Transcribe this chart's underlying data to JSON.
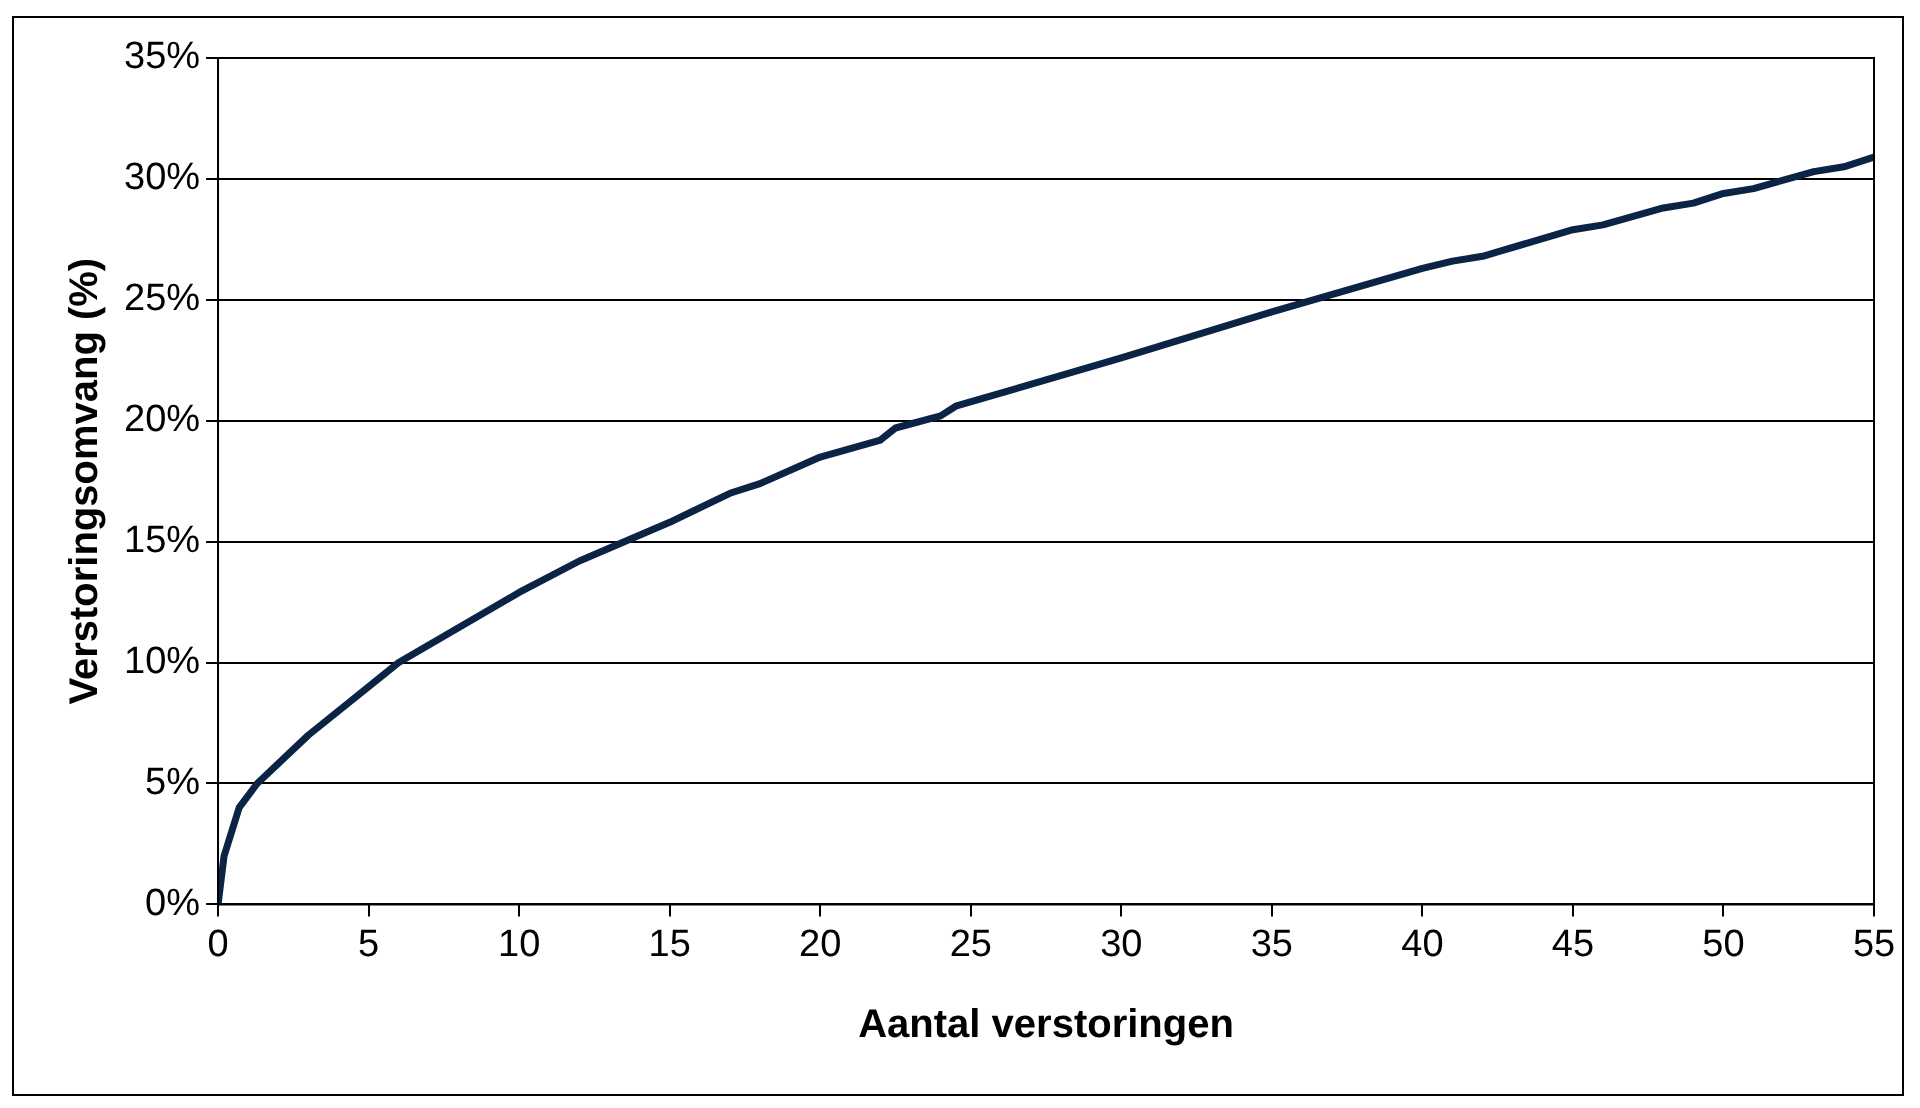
{
  "chart_data": {
    "type": "line",
    "xlabel": "Aantal verstoringen",
    "ylabel": "Verstoringsomvang (%)",
    "x": [
      0,
      0.2,
      0.7,
      1.3,
      3,
      6,
      10,
      12,
      15,
      17,
      18,
      20,
      22,
      22.5,
      24,
      24.5,
      30,
      35,
      40,
      41,
      42,
      45,
      46,
      48,
      49,
      50,
      51,
      53,
      54,
      55
    ],
    "series": [
      {
        "color": "#0b2344",
        "values": [
          0,
          2,
          4,
          5,
          7,
          10,
          12.9,
          14.2,
          15.8,
          17,
          17.4,
          18.5,
          19.2,
          19.7,
          20.2,
          20.6,
          22.6,
          24.5,
          26.3,
          26.6,
          26.8,
          27.9,
          28.1,
          28.8,
          29,
          29.4,
          29.6,
          30.3,
          30.5,
          30.9
        ]
      }
    ],
    "xlim": [
      0,
      55
    ],
    "xticks": [
      0,
      5,
      10,
      15,
      20,
      25,
      30,
      35,
      40,
      45,
      50,
      55
    ],
    "ylim": [
      0,
      35
    ],
    "yticks": [
      {
        "value": 0,
        "label": "0%"
      },
      {
        "value": 5,
        "label": "5%"
      },
      {
        "value": 10,
        "label": "10%"
      },
      {
        "value": 15,
        "label": "15%"
      },
      {
        "value": 20,
        "label": "20%"
      },
      {
        "value": 25,
        "label": "25%"
      },
      {
        "value": 30,
        "label": "30%"
      },
      {
        "value": 35,
        "label": "35%"
      }
    ],
    "grid": "y",
    "legend": false,
    "marker": "none",
    "line_style": "solid"
  }
}
